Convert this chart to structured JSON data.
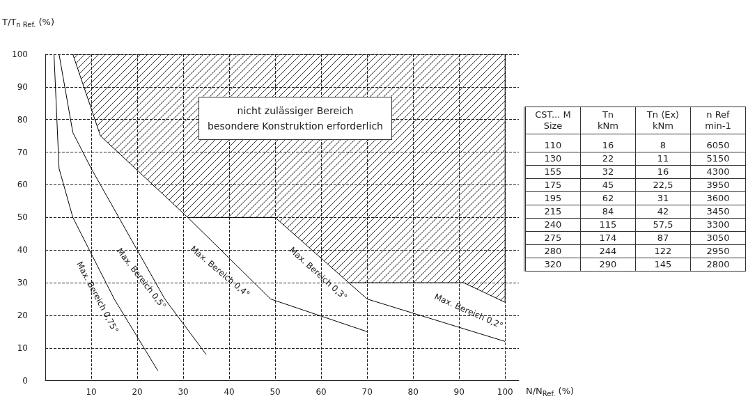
{
  "chart_data": [
    {
      "type": "line",
      "xlabel": "N/N$_{Ref.}$ (%)",
      "ylabel": "T/T$_{n Ref.}$ (%)",
      "xlim": [
        0,
        103
      ],
      "ylim": [
        0,
        100
      ],
      "xticks": [
        10,
        20,
        30,
        40,
        50,
        60,
        70,
        80,
        90,
        100
      ],
      "yticks": [
        0,
        10,
        20,
        30,
        40,
        50,
        60,
        70,
        80,
        90,
        100
      ],
      "grid": true,
      "marker": "none",
      "line_style": "solid",
      "series": [
        {
          "type": "area",
          "color": "#000000",
          "x": [
            6,
            12,
            31,
            50,
            66,
            91,
            100,
            100
          ],
          "values": [
            100,
            75,
            50,
            50,
            30,
            30,
            24,
            100
          ]
        },
        {
          "color": "#000000",
          "x": [
            1.9,
            3,
            6,
            15,
            24.5
          ],
          "values": [
            100,
            65,
            50,
            25,
            3
          ]
        },
        {
          "color": "#000000",
          "x": [
            3,
            6,
            10,
            26,
            35
          ],
          "values": [
            100,
            76,
            65,
            25,
            8
          ]
        },
        {
          "color": "#000000",
          "x": [
            31,
            49,
            70
          ],
          "values": [
            50,
            25,
            15
          ]
        },
        {
          "color": "#000000",
          "x": [
            66,
            70,
            100
          ],
          "values": [
            30,
            25,
            12
          ]
        }
      ],
      "annotations": [
        "nicht zulässiger Bereich\nbesondere Konstruktion erforderlich",
        "Max. Bereich 0,75°",
        "Max. Bereich 0,5°",
        "Max. Bereich 0,4°",
        "Max. Bereich 0,3°",
        "Max. Bereich 0,2°"
      ]
    },
    {
      "type": "other",
      "categories": [
        "CST... M\nSize",
        "Tn\nkNm",
        "Tn ⟨Ex⟩\nkNm",
        "n Ref\nmin-1"
      ],
      "cell_labels": [
        [
          "110",
          "16",
          "8",
          "6050"
        ],
        [
          "130",
          "22",
          "11",
          "5150"
        ],
        [
          "155",
          "32",
          "16",
          "4300"
        ],
        [
          "175",
          "45",
          "22,5",
          "3950"
        ],
        [
          "195",
          "62",
          "31",
          "3600"
        ],
        [
          "215",
          "84",
          "42",
          "3450"
        ],
        [
          "240",
          "115",
          "57,5",
          "3300"
        ],
        [
          "275",
          "174",
          "87",
          "3050"
        ],
        [
          "280",
          "244",
          "122",
          "2950"
        ],
        [
          "320",
          "290",
          "145",
          "2800"
        ]
      ]
    }
  ]
}
